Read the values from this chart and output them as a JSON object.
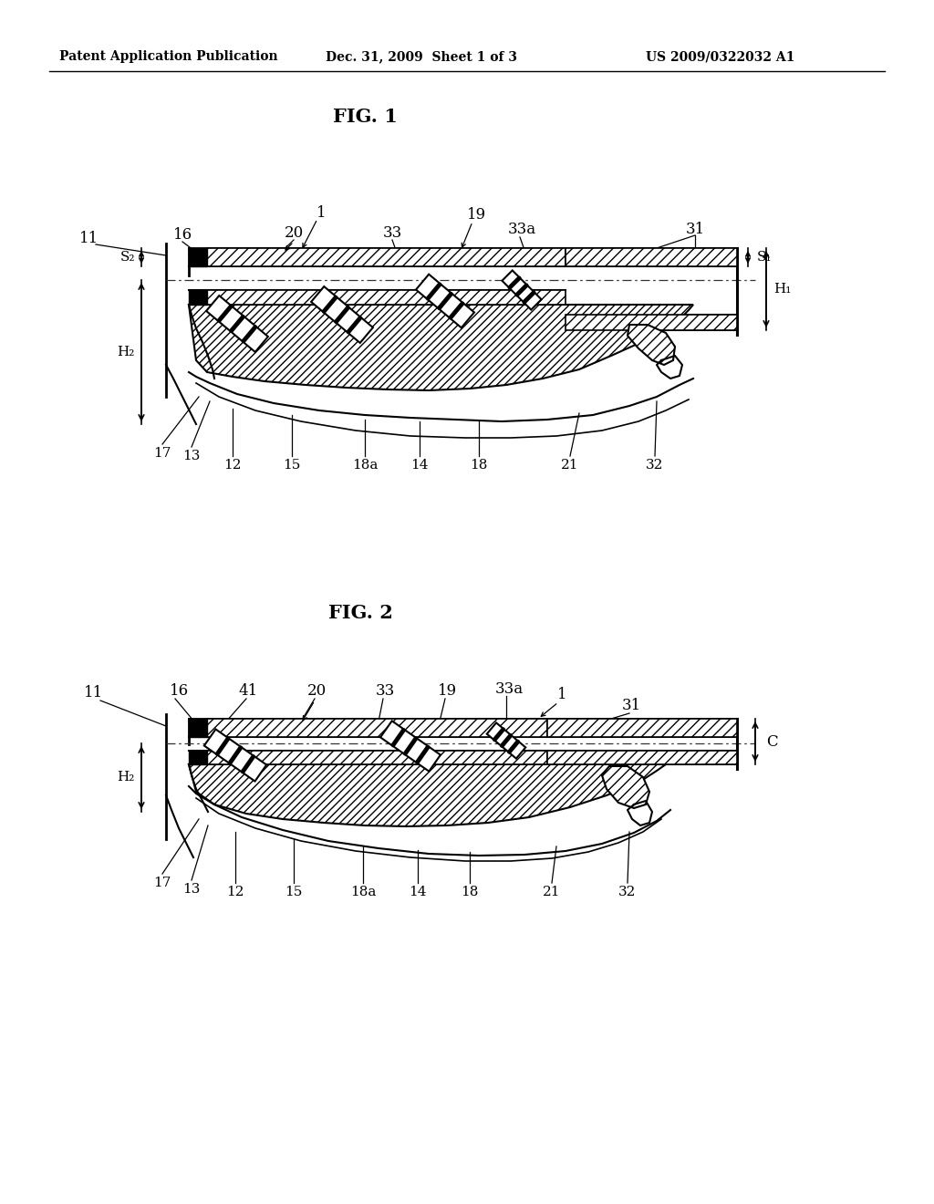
{
  "background_color": "#ffffff",
  "header_left": "Patent Application Publication",
  "header_center": "Dec. 31, 2009  Sheet 1 of 3",
  "header_right": "US 2009/0322032 A1",
  "fig1_title": "FIG. 1",
  "fig2_title": "FIG. 2",
  "font_color": "#000000",
  "line_color": "#000000"
}
